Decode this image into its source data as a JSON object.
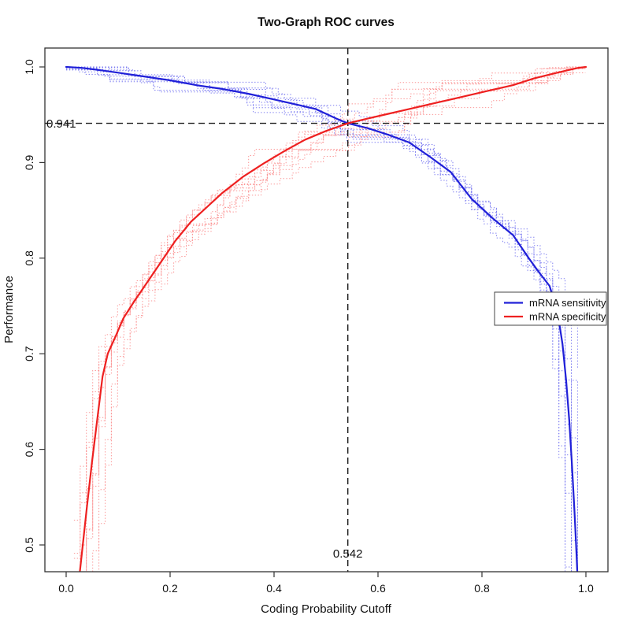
{
  "page": {
    "background": "#ffffff"
  },
  "chart_data": {
    "type": "line",
    "title": "Two-Graph ROC curves",
    "xlabel": "Coding Probability Cutoff",
    "ylabel": "Performance",
    "xlim": [
      -0.04,
      1.04
    ],
    "ylim": [
      0.468,
      1.02
    ],
    "x_ticks": [
      0.0,
      0.2,
      0.4,
      0.6,
      0.8,
      1.0
    ],
    "x_tick_labels": [
      "0.0",
      "0.2",
      "0.4",
      "0.6",
      "0.8",
      "1.0"
    ],
    "y_ticks": [
      0.5,
      0.6,
      0.7,
      0.8,
      0.9,
      1.0
    ],
    "y_tick_labels": [
      "0.5",
      "0.6",
      "0.7",
      "0.8",
      "0.9",
      "1.0"
    ],
    "grid": false,
    "legend_position": "right-middle",
    "annotations": {
      "crossover": {
        "cutoff": 0.542,
        "performance": 0.941,
        "cutoff_label": "0.542",
        "performance_label": "0.941",
        "line_style": "dashed",
        "line_color": "#1a1a1a"
      }
    },
    "series": [
      {
        "name": "mRNA sensitivity",
        "color": "#2020d8",
        "style": "solid",
        "width": 2.2,
        "x": [
          0.0,
          0.03,
          0.06,
          0.1,
          0.15,
          0.2,
          0.25,
          0.3,
          0.35,
          0.4,
          0.44,
          0.48,
          0.52,
          0.542,
          0.58,
          0.62,
          0.66,
          0.7,
          0.74,
          0.78,
          0.82,
          0.86,
          0.89,
          0.91,
          0.93,
          0.945,
          0.955,
          0.962,
          0.968,
          0.973,
          0.978,
          0.982,
          0.986
        ],
        "y": [
          1.0,
          0.999,
          0.997,
          0.994,
          0.99,
          0.986,
          0.981,
          0.977,
          0.972,
          0.966,
          0.961,
          0.956,
          0.946,
          0.941,
          0.936,
          0.929,
          0.921,
          0.906,
          0.89,
          0.862,
          0.842,
          0.824,
          0.8,
          0.785,
          0.771,
          0.745,
          0.71,
          0.672,
          0.63,
          0.585,
          0.535,
          0.49,
          0.44
        ]
      },
      {
        "name": "mRNA specificity",
        "color": "#ee2020",
        "style": "solid",
        "width": 2.2,
        "x": [
          0.02,
          0.03,
          0.04,
          0.05,
          0.06,
          0.07,
          0.08,
          0.095,
          0.11,
          0.13,
          0.15,
          0.18,
          0.21,
          0.24,
          0.27,
          0.3,
          0.34,
          0.38,
          0.42,
          0.46,
          0.5,
          0.542,
          0.58,
          0.62,
          0.66,
          0.7,
          0.74,
          0.78,
          0.82,
          0.86,
          0.9,
          0.93,
          0.96,
          0.985,
          1.0
        ],
        "y": [
          0.44,
          0.49,
          0.54,
          0.588,
          0.632,
          0.676,
          0.7,
          0.718,
          0.737,
          0.754,
          0.77,
          0.794,
          0.818,
          0.838,
          0.853,
          0.868,
          0.885,
          0.899,
          0.912,
          0.924,
          0.933,
          0.941,
          0.946,
          0.951,
          0.956,
          0.961,
          0.966,
          0.971,
          0.976,
          0.981,
          0.988,
          0.992,
          0.996,
          0.999,
          1.0
        ]
      }
    ],
    "replicate_curves": {
      "description": "dotted per-replicate ROC curves scattered around each mean curve",
      "style": "dotted",
      "sensitivity": {
        "color": "#7878f0",
        "seeds": [
          11,
          23,
          37,
          41,
          53,
          67,
          71,
          83,
          97
        ],
        "amps": [
          1.0,
          0.75,
          1.2,
          0.9,
          1.1,
          0.65,
          1.25,
          0.85,
          1.0
        ]
      },
      "specificity": {
        "color": "#fb9090",
        "seeds": [
          13,
          29,
          31,
          43,
          59,
          61,
          73,
          89,
          101
        ],
        "amps": [
          1.1,
          0.8,
          1.25,
          0.9,
          1.0,
          0.7,
          1.2,
          0.95,
          1.05
        ]
      }
    }
  },
  "legend": {
    "items": [
      {
        "label": "mRNA sensitivity",
        "color": "#2020d8"
      },
      {
        "label": "mRNA specificity",
        "color": "#ee2020"
      }
    ]
  },
  "axis_style": {
    "box_color": "#333333",
    "tick_color": "#333333",
    "text_color": "#111111"
  }
}
